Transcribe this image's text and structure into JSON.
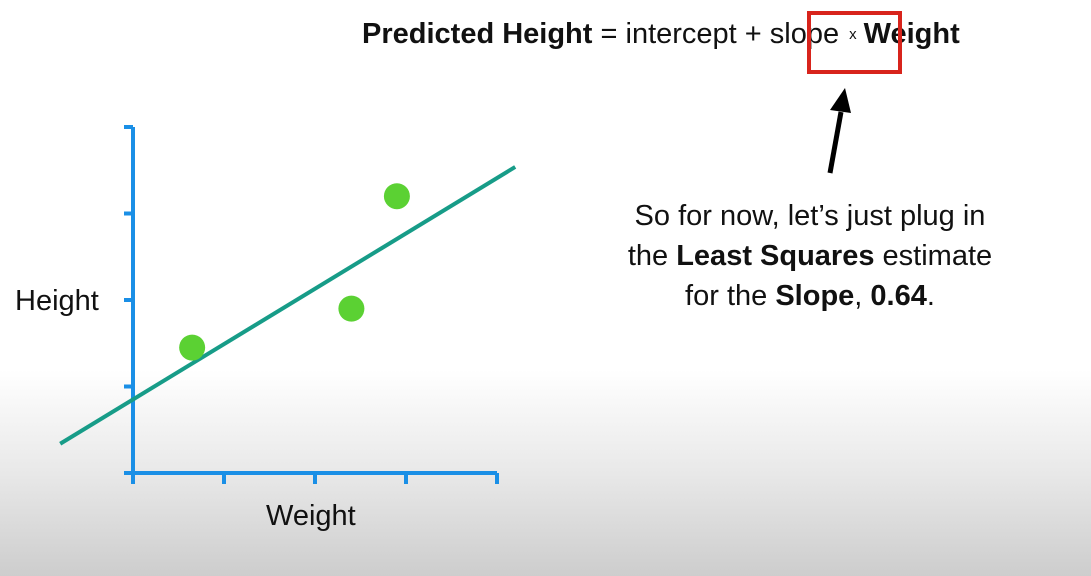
{
  "formula": {
    "lhs": "Predicted Height",
    "equals": " = ",
    "intercept": "intercept",
    "plus": " + ",
    "slope": "slope",
    "times": "x",
    "rhs": "Weight"
  },
  "note": {
    "line1": "So for now, let’s just plug in",
    "line2_pre": "the ",
    "line2_bold": "Least Squares",
    "line2_post": " estimate",
    "line3_pre": "for the ",
    "line3_bold1": "Slope",
    "line3_mid": ", ",
    "line3_bold2": "0.64",
    "line3_post": "."
  },
  "chart_data": {
    "type": "scatter",
    "xlabel": "Weight",
    "ylabel": "Height",
    "points": [
      {
        "x": 0.65,
        "y": 1.45
      },
      {
        "x": 2.4,
        "y": 1.9
      },
      {
        "x": 2.9,
        "y": 3.2
      }
    ],
    "fit_line": {
      "intercept": 0.85,
      "slope": 0.64
    },
    "xlim": [
      0,
      4
    ],
    "ylim": [
      0,
      4
    ],
    "x_ticks": 5,
    "y_ticks": 5
  },
  "colors": {
    "axis": "#1a8fe6",
    "line": "#179c88",
    "point": "#5bd133",
    "highlight": "#d8241c",
    "arrow": "#000000"
  }
}
